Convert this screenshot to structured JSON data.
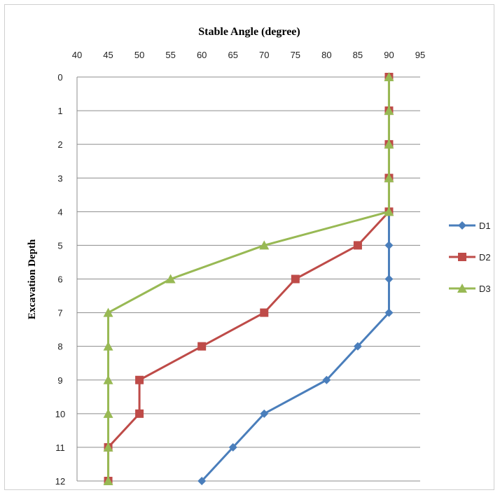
{
  "chart_data": {
    "type": "line",
    "title": "Stable Angle (degree)",
    "xlabel": "Stable Angle (degree)",
    "ylabel": "Excavation Depth",
    "x_axis_position": "top",
    "xlim": [
      40,
      95
    ],
    "xticks": [
      40,
      45,
      50,
      55,
      60,
      65,
      70,
      75,
      80,
      85,
      90,
      95
    ],
    "ylim": [
      0,
      12
    ],
    "y_inverted": true,
    "yticks": [
      0,
      1,
      2,
      3,
      4,
      5,
      6,
      7,
      8,
      9,
      10,
      11,
      12
    ],
    "grid": "horizontal",
    "legend": "right",
    "series": [
      {
        "name": "D1",
        "color": "#4a7ebb",
        "marker": "diamond",
        "points": [
          [
            90,
            4
          ],
          [
            90,
            5
          ],
          [
            90,
            6
          ],
          [
            90,
            7
          ],
          [
            85,
            8
          ],
          [
            80,
            9
          ],
          [
            70,
            10
          ],
          [
            65,
            11
          ],
          [
            60,
            12
          ]
        ]
      },
      {
        "name": "D2",
        "color": "#be4b48",
        "marker": "square",
        "points": [
          [
            90,
            0
          ],
          [
            90,
            1
          ],
          [
            90,
            2
          ],
          [
            90,
            3
          ],
          [
            90,
            4
          ],
          [
            85,
            5
          ],
          [
            75,
            6
          ],
          [
            70,
            7
          ],
          [
            60,
            8
          ],
          [
            50,
            9
          ],
          [
            50,
            10
          ],
          [
            45,
            11
          ],
          [
            45,
            12
          ]
        ]
      },
      {
        "name": "D3",
        "color": "#98b954",
        "marker": "triangle",
        "points": [
          [
            90,
            0
          ],
          [
            90,
            1
          ],
          [
            90,
            2
          ],
          [
            90,
            3
          ],
          [
            90,
            4
          ],
          [
            70,
            5
          ],
          [
            55,
            6
          ],
          [
            45,
            7
          ],
          [
            45,
            8
          ],
          [
            45,
            9
          ],
          [
            45,
            10
          ],
          [
            45,
            11
          ],
          [
            45,
            12
          ]
        ]
      }
    ]
  }
}
